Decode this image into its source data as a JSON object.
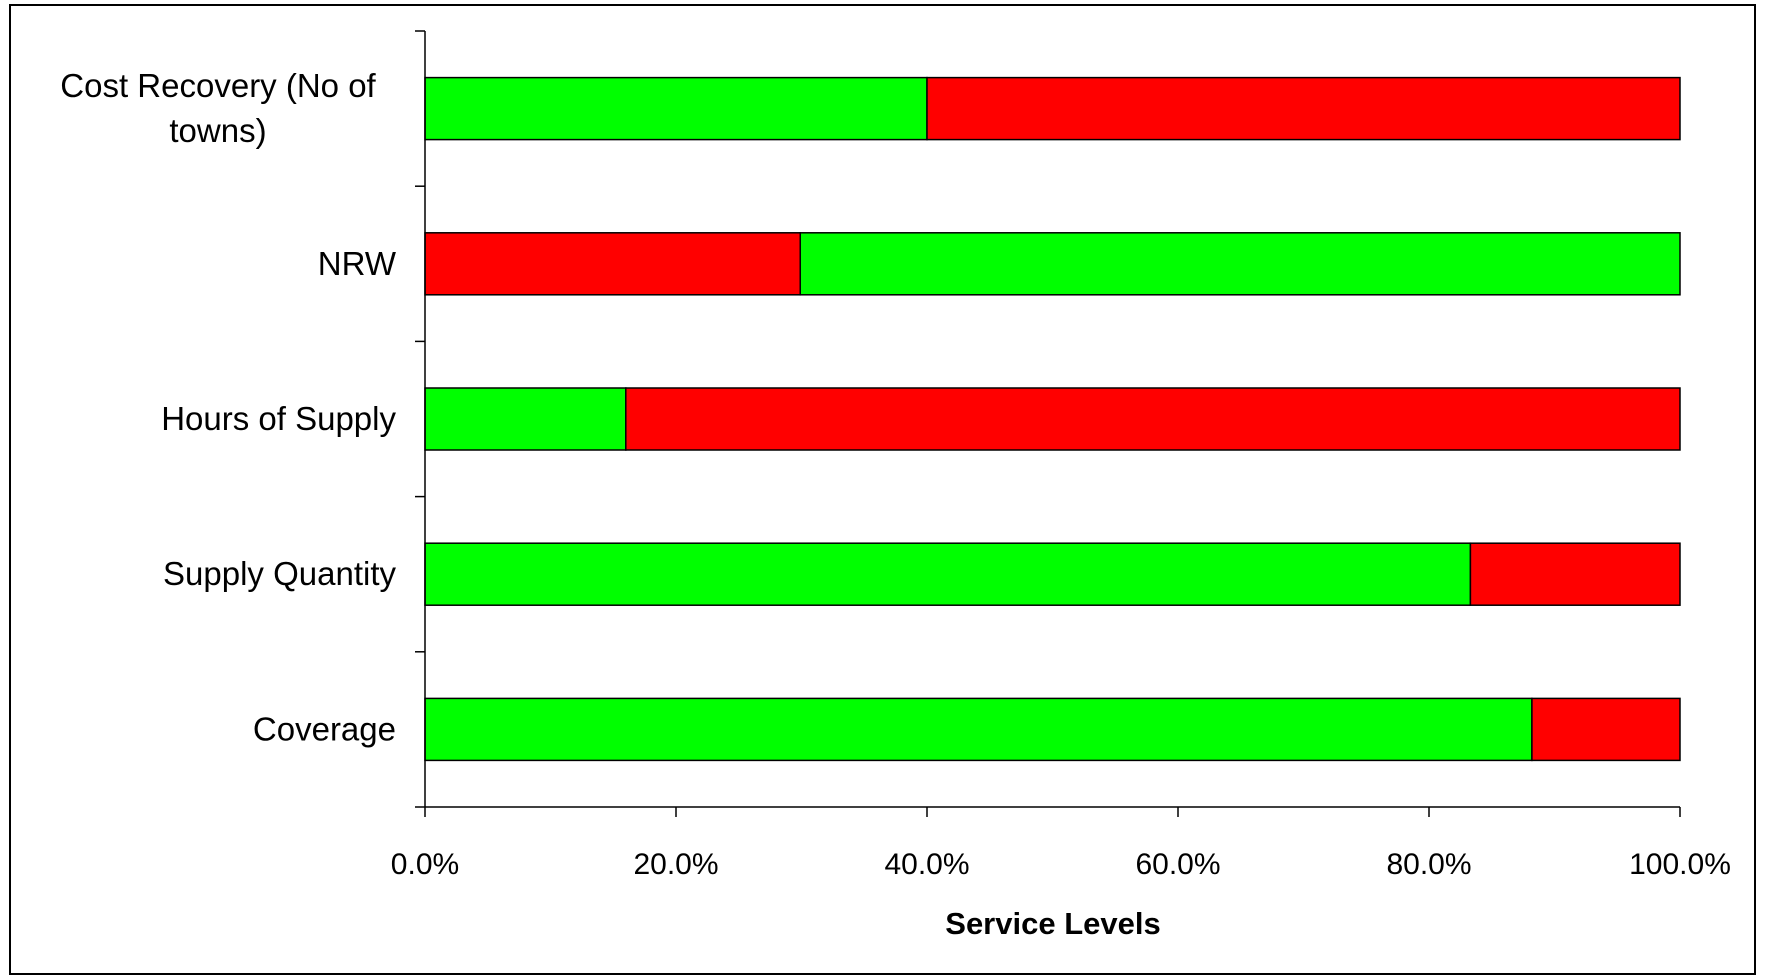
{
  "chart_data": {
    "type": "bar",
    "orientation": "horizontal",
    "stacked": true,
    "categories": [
      [
        "Cost Recovery (No of",
        "towns)"
      ],
      [
        "NRW"
      ],
      [
        "Hours of Supply"
      ],
      [
        "Supply Quantity"
      ],
      [
        "Coverage"
      ]
    ],
    "series": [
      {
        "values": [
          40.0,
          0,
          16.0,
          83.3,
          88.2
        ],
        "color": "#00ff00"
      },
      {
        "values": [
          60.0,
          29.9,
          84.0,
          16.7,
          11.8
        ],
        "color": "#ff0000"
      },
      {
        "values": [
          0,
          70.1,
          0,
          0,
          0
        ],
        "color": "#00ff00"
      }
    ],
    "xlim": [
      0,
      100
    ],
    "xticks": [
      "0.0%",
      "20.0%",
      "40.0%",
      "60.0%",
      "80.0%",
      "100.0%"
    ],
    "xlabel": "Service Levels",
    "title": "",
    "grid": false,
    "legend": "none"
  }
}
